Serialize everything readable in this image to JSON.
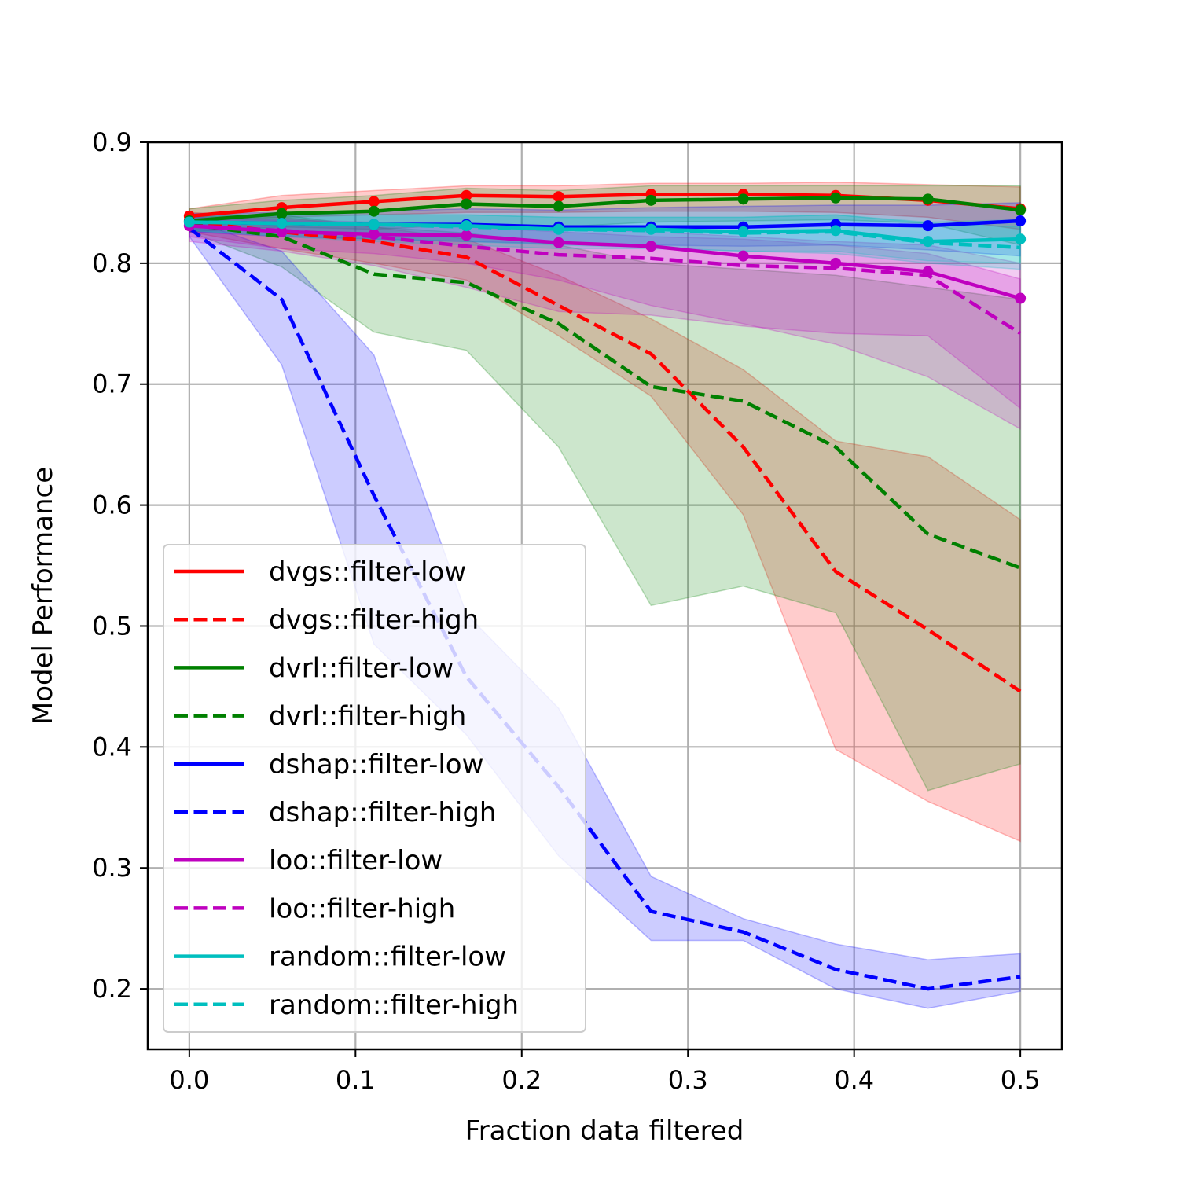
{
  "chart_data": {
    "type": "line",
    "title": "",
    "xlabel": "Fraction data filtered",
    "ylabel": "Model Performance",
    "xlim": [
      -0.025,
      0.525
    ],
    "ylim": [
      0.15,
      0.9
    ],
    "xticks": [
      0.0,
      0.1,
      0.2,
      0.3,
      0.4,
      0.5
    ],
    "xtick_labels": [
      "0.0",
      "0.1",
      "0.2",
      "0.3",
      "0.4",
      "0.5"
    ],
    "yticks": [
      0.2,
      0.3,
      0.4,
      0.5,
      0.6,
      0.7,
      0.8,
      0.9
    ],
    "ytick_labels": [
      "0.2",
      "0.3",
      "0.4",
      "0.5",
      "0.6",
      "0.7",
      "0.8",
      "0.9"
    ],
    "grid": true,
    "legend_position": "lower-left",
    "x": [
      0.0,
      0.0556,
      0.1111,
      0.1667,
      0.2222,
      0.2778,
      0.3333,
      0.3889,
      0.4444,
      0.5
    ],
    "series": [
      {
        "name": "dvgs::filter-low",
        "color": "#ff0000",
        "style": "solid",
        "markers": true,
        "values": [
          0.839,
          0.846,
          0.851,
          0.856,
          0.855,
          0.857,
          0.857,
          0.856,
          0.852,
          0.845
        ],
        "lower": [
          0.835,
          0.838,
          0.84,
          0.842,
          0.842,
          0.843,
          0.843,
          0.842,
          0.838,
          0.828
        ],
        "upper": [
          0.845,
          0.856,
          0.86,
          0.864,
          0.864,
          0.866,
          0.866,
          0.867,
          0.865,
          0.863
        ]
      },
      {
        "name": "dvgs::filter-high",
        "color": "#ff0000",
        "style": "dashed",
        "markers": false,
        "values": [
          0.834,
          0.826,
          0.818,
          0.805,
          0.765,
          0.725,
          0.648,
          0.545,
          0.497,
          0.446
        ],
        "lower": [
          0.826,
          0.812,
          0.8,
          0.786,
          0.74,
          0.69,
          0.592,
          0.398,
          0.355,
          0.322
        ],
        "upper": [
          0.842,
          0.838,
          0.83,
          0.82,
          0.79,
          0.754,
          0.712,
          0.653,
          0.64,
          0.588
        ]
      },
      {
        "name": "dvrl::filter-low",
        "color": "#008000",
        "style": "solid",
        "markers": true,
        "values": [
          0.835,
          0.841,
          0.843,
          0.849,
          0.847,
          0.852,
          0.853,
          0.854,
          0.853,
          0.844
        ],
        "lower": [
          0.826,
          0.83,
          0.828,
          0.832,
          0.83,
          0.834,
          0.835,
          0.836,
          0.833,
          0.815
        ],
        "upper": [
          0.845,
          0.852,
          0.856,
          0.862,
          0.86,
          0.864,
          0.864,
          0.864,
          0.864,
          0.864
        ]
      },
      {
        "name": "dvrl::filter-high",
        "color": "#008000",
        "style": "dashed",
        "markers": false,
        "values": [
          0.832,
          0.822,
          0.791,
          0.784,
          0.75,
          0.698,
          0.686,
          0.648,
          0.576,
          0.548
        ],
        "lower": [
          0.826,
          0.797,
          0.743,
          0.728,
          0.648,
          0.517,
          0.533,
          0.511,
          0.364,
          0.386
        ],
        "upper": [
          0.838,
          0.84,
          0.83,
          0.825,
          0.815,
          0.8,
          0.795,
          0.79,
          0.78,
          0.77
        ]
      },
      {
        "name": "dshap::filter-low",
        "color": "#0000ff",
        "style": "solid",
        "markers": true,
        "values": [
          0.834,
          0.833,
          0.832,
          0.832,
          0.83,
          0.83,
          0.83,
          0.832,
          0.831,
          0.835
        ],
        "lower": [
          0.826,
          0.822,
          0.82,
          0.818,
          0.816,
          0.815,
          0.814,
          0.815,
          0.811,
          0.806
        ],
        "upper": [
          0.841,
          0.842,
          0.843,
          0.845,
          0.844,
          0.846,
          0.847,
          0.848,
          0.848,
          0.85
        ]
      },
      {
        "name": "dshap::filter-high",
        "color": "#0000ff",
        "style": "dashed",
        "markers": false,
        "values": [
          0.829,
          0.77,
          0.608,
          0.458,
          0.367,
          0.264,
          0.247,
          0.216,
          0.2,
          0.21
        ],
        "lower": [
          0.822,
          0.716,
          0.485,
          0.41,
          0.31,
          0.24,
          0.24,
          0.2,
          0.184,
          0.198
        ],
        "upper": [
          0.836,
          0.81,
          0.724,
          0.51,
          0.432,
          0.293,
          0.258,
          0.237,
          0.224,
          0.229
        ]
      },
      {
        "name": "loo::filter-low",
        "color": "#bf00bf",
        "style": "solid",
        "markers": true,
        "values": [
          0.831,
          0.826,
          0.824,
          0.823,
          0.817,
          0.814,
          0.806,
          0.8,
          0.793,
          0.771
        ],
        "lower": [
          0.822,
          0.812,
          0.808,
          0.8,
          0.786,
          0.765,
          0.75,
          0.733,
          0.706,
          0.663
        ],
        "upper": [
          0.838,
          0.835,
          0.833,
          0.832,
          0.828,
          0.826,
          0.822,
          0.818,
          0.815,
          0.8
        ]
      },
      {
        "name": "loo::filter-high",
        "color": "#bf00bf",
        "style": "dashed",
        "markers": false,
        "values": [
          0.831,
          0.827,
          0.822,
          0.814,
          0.807,
          0.804,
          0.798,
          0.796,
          0.79,
          0.742
        ],
        "lower": [
          0.818,
          0.81,
          0.798,
          0.78,
          0.76,
          0.757,
          0.748,
          0.742,
          0.74,
          0.68
        ],
        "upper": [
          0.838,
          0.836,
          0.834,
          0.83,
          0.826,
          0.822,
          0.82,
          0.815,
          0.808,
          0.787
        ]
      },
      {
        "name": "random::filter-low",
        "color": "#00bfbf",
        "style": "solid",
        "markers": true,
        "values": [
          0.834,
          0.833,
          0.832,
          0.831,
          0.828,
          0.828,
          0.826,
          0.827,
          0.818,
          0.82
        ],
        "lower": [
          0.827,
          0.823,
          0.82,
          0.818,
          0.815,
          0.813,
          0.81,
          0.81,
          0.802,
          0.8
        ],
        "upper": [
          0.84,
          0.84,
          0.84,
          0.84,
          0.838,
          0.838,
          0.838,
          0.84,
          0.834,
          0.836
        ]
      },
      {
        "name": "random::filter-high",
        "color": "#00bfbf",
        "style": "dashed",
        "markers": false,
        "values": [
          0.834,
          0.833,
          0.832,
          0.83,
          0.828,
          0.827,
          0.825,
          0.826,
          0.817,
          0.813
        ],
        "lower": [
          0.827,
          0.822,
          0.818,
          0.815,
          0.812,
          0.812,
          0.81,
          0.808,
          0.8,
          0.795
        ],
        "upper": [
          0.84,
          0.84,
          0.84,
          0.84,
          0.838,
          0.838,
          0.838,
          0.84,
          0.833,
          0.83
        ]
      }
    ]
  }
}
